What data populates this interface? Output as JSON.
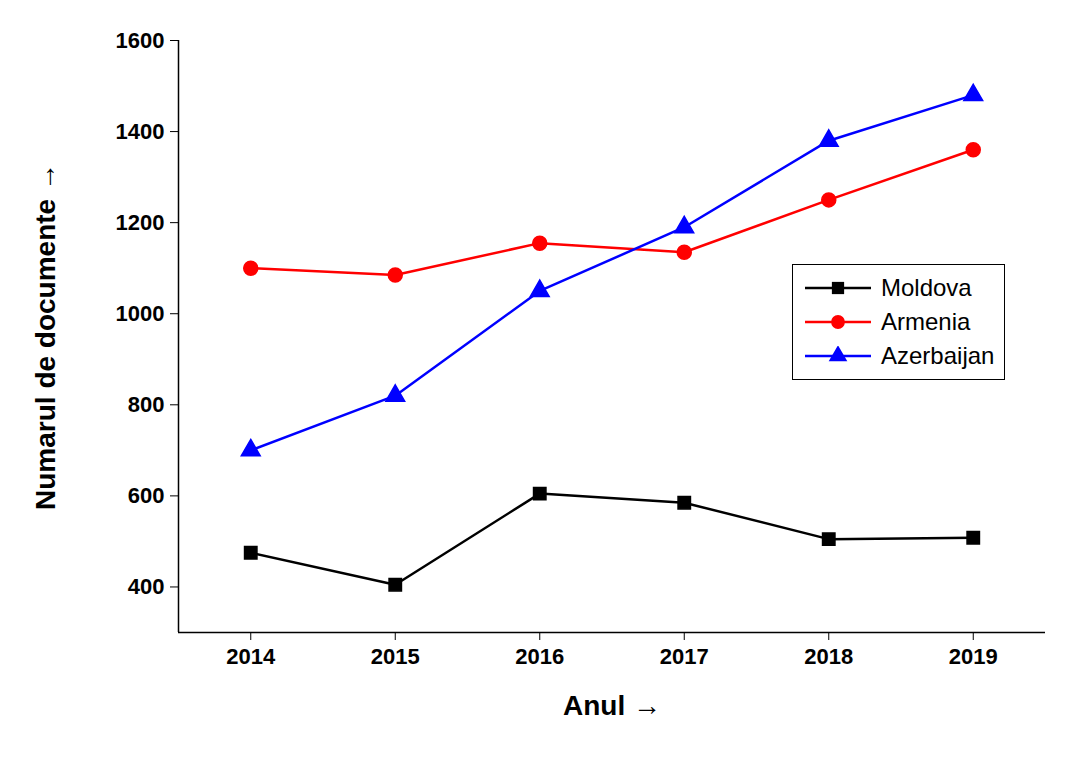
{
  "chart_data": {
    "type": "line",
    "x_label": "Anul",
    "y_label": "Numarul de documente",
    "x": [
      2014,
      2015,
      2016,
      2017,
      2018,
      2019
    ],
    "xlim": [
      2013.5,
      2019.5
    ],
    "xticks": [
      2014,
      2015,
      2016,
      2017,
      2018,
      2019
    ],
    "ylim": [
      300,
      1600
    ],
    "yticks": [
      400,
      600,
      800,
      1000,
      1200,
      1400,
      1600
    ],
    "grid": false,
    "legend": "right",
    "series": [
      {
        "name": "Moldova",
        "color": "#000000",
        "marker": "square",
        "values": [
          475,
          405,
          605,
          585,
          505,
          508
        ]
      },
      {
        "name": "Armenia",
        "color": "#ff0000",
        "marker": "circle",
        "values": [
          1100,
          1085,
          1155,
          1135,
          1250,
          1360
        ]
      },
      {
        "name": "Azerbaijan",
        "color": "#0000ff",
        "marker": "triangle",
        "values": [
          700,
          820,
          1050,
          1190,
          1380,
          1480
        ]
      }
    ]
  }
}
